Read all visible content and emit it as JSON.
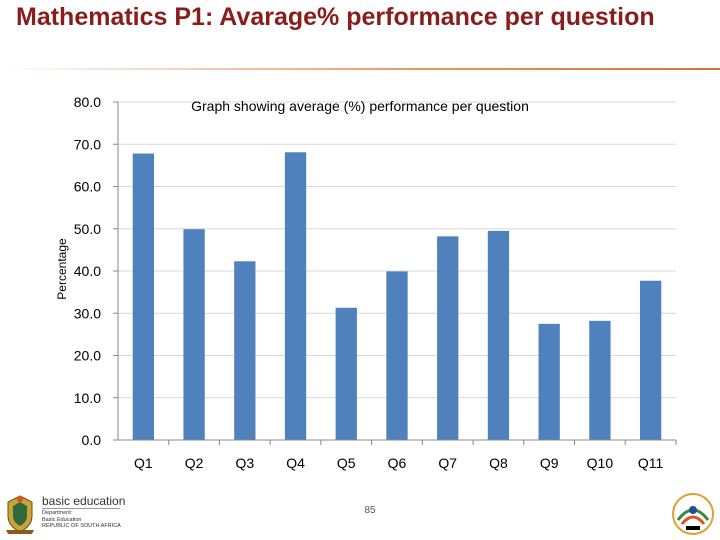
{
  "slide": {
    "title": "Mathematics P1: Avarage% performance per question",
    "page_number": "85"
  },
  "footer": {
    "logo_name": "basic education",
    "logo_lines": [
      "Department:",
      "Basic Education",
      "REPUBLIC OF SOUTH AFRICA"
    ],
    "coat_of_arms_icon": "coat-of-arms-icon",
    "badge_icon": "anniversary-badge-icon"
  },
  "chart_data": {
    "type": "bar",
    "title": "Graph showing average (%) performance per question",
    "xlabel": "",
    "ylabel": "Percentage",
    "categories": [
      "Q1",
      "Q2",
      "Q3",
      "Q4",
      "Q5",
      "Q6",
      "Q7",
      "Q8",
      "Q9",
      "Q10",
      "Q11"
    ],
    "values": [
      67.8,
      49.9,
      42.3,
      68.1,
      31.3,
      39.9,
      48.2,
      49.5,
      27.5,
      28.2,
      37.7
    ],
    "ylim": [
      0,
      80
    ],
    "yticks": [
      "0.0",
      "10.0",
      "20.0",
      "30.0",
      "40.0",
      "50.0",
      "60.0",
      "70.0",
      "80.0"
    ],
    "grid": true,
    "legend": "none",
    "bar_color": "#4f81bd",
    "grid_color": "#d9d9d9"
  }
}
